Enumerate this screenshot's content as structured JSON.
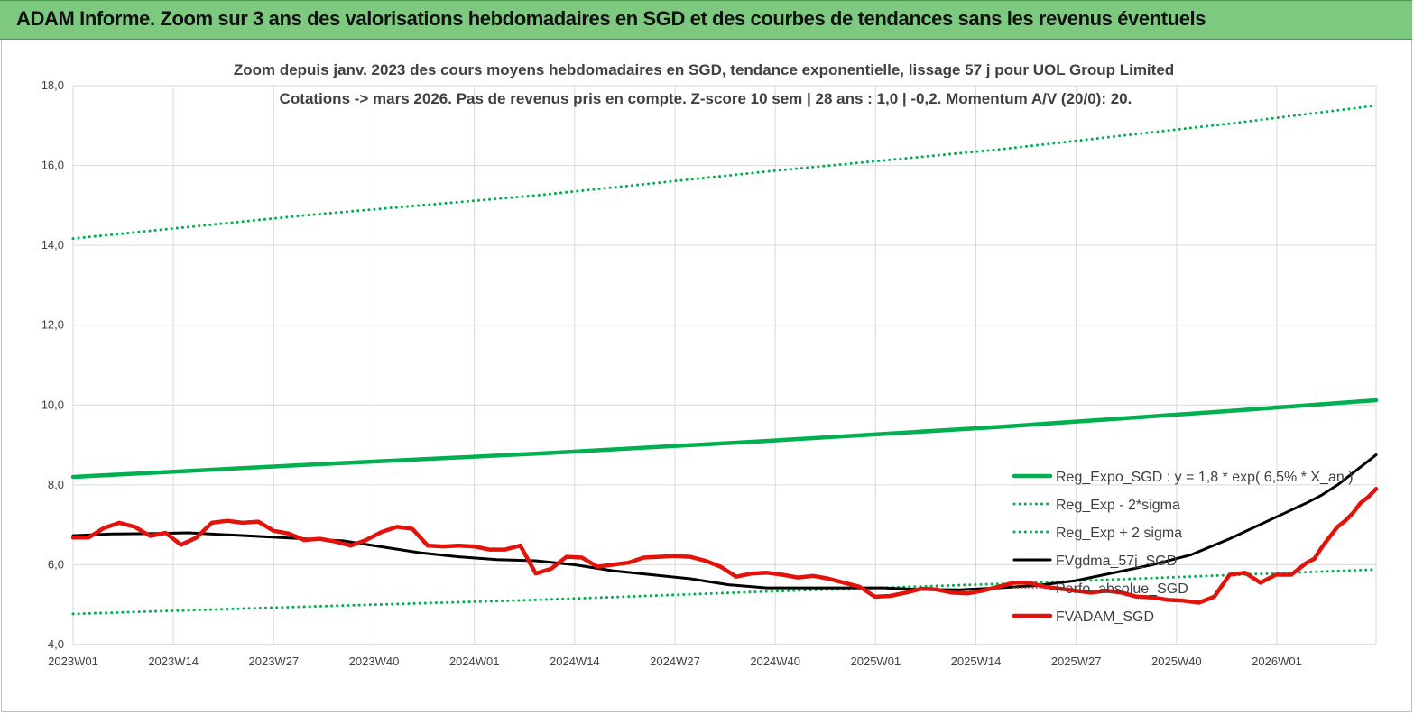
{
  "header": {
    "banner_title": "ADAM Informe. Zoom sur 3 ans des valorisations hebdomadaires en SGD et des courbes de tendances sans les revenus éventuels"
  },
  "colors": {
    "banner_bg": "#7dc97f",
    "trend": "#00b050",
    "price": "#e3120b",
    "smooth": "#000000",
    "perf": "#c0504d",
    "grid": "#d9d9d9"
  },
  "chart_data": {
    "type": "line",
    "title": "Zoom depuis janv. 2023 des cours moyens hebdomadaires en SGD, tendance exponentielle, lissage 57 j pour UOL Group Limited",
    "subtitle": "Cotations -> mars 2026. Pas de revenus pris en compte. Z-score 10 sem | 28 ans : 1,0 | -0,2. Momentum A/V (20/0): 20.",
    "xlabel": "",
    "ylabel": "",
    "ylim": [
      4.0,
      18.0
    ],
    "ytick_labels": [
      "4,0",
      "6,0",
      "8,0",
      "10,0",
      "12,0",
      "14,0",
      "16,0",
      "18,0"
    ],
    "categories": [
      "2023W01",
      "2023W14",
      "2023W27",
      "2023W40",
      "2024W01",
      "2024W14",
      "2024W27",
      "2024W40",
      "2025W01",
      "2025W14",
      "2025W27",
      "2025W40",
      "2026W01"
    ],
    "x_week_range": [
      0,
      169
    ],
    "grid": true,
    "legend_position": "right",
    "series": [
      {
        "name": "Reg_Expo_SGD : y = 1,8 * exp( 6,5% * X_an )",
        "style": "solid-thick",
        "color": "#00b050",
        "x": [
          0,
          30,
          60,
          90,
          120,
          150,
          169
        ],
        "values": [
          8.2,
          8.5,
          8.78,
          9.1,
          9.45,
          9.85,
          10.12
        ]
      },
      {
        "name": "Reg_Exp - 2*sigma",
        "style": "dotted",
        "color": "#00b050",
        "x": [
          0,
          30,
          60,
          90,
          120,
          150,
          169
        ],
        "values": [
          4.77,
          4.95,
          5.12,
          5.33,
          5.52,
          5.74,
          5.88
        ]
      },
      {
        "name": "Reg_Exp + 2 sigma",
        "style": "dotted",
        "color": "#00b050",
        "x": [
          0,
          30,
          60,
          90,
          120,
          150,
          169
        ],
        "values": [
          14.17,
          14.75,
          15.25,
          15.85,
          16.4,
          17.05,
          17.5
        ]
      },
      {
        "name": "FVgdma_57j_SGD",
        "style": "solid",
        "color": "#000000",
        "x": [
          0,
          5,
          10,
          15,
          20,
          25,
          30,
          35,
          40,
          45,
          50,
          55,
          60,
          65,
          70,
          75,
          80,
          85,
          90,
          95,
          100,
          105,
          110,
          115,
          120,
          125,
          130,
          135,
          140,
          145,
          150,
          155,
          160,
          162,
          164,
          166,
          168,
          169
        ],
        "values": [
          6.73,
          6.77,
          6.78,
          6.8,
          6.75,
          6.7,
          6.65,
          6.6,
          6.45,
          6.3,
          6.2,
          6.13,
          6.1,
          6.0,
          5.85,
          5.75,
          5.65,
          5.5,
          5.42,
          5.42,
          5.42,
          5.42,
          5.38,
          5.37,
          5.42,
          5.48,
          5.6,
          5.8,
          6.0,
          6.25,
          6.65,
          7.1,
          7.55,
          7.75,
          8.0,
          8.3,
          8.6,
          8.75
        ]
      },
      {
        "name": "Perfo. absolue_SGD",
        "style": "dotted-thin",
        "color": "#c0504d",
        "x": [],
        "values": []
      },
      {
        "name": "FVADAM_SGD",
        "style": "solid-thick",
        "color": "#e3120b",
        "x": [
          0,
          2,
          4,
          6,
          8,
          10,
          12,
          14,
          16,
          18,
          20,
          22,
          24,
          26,
          28,
          30,
          32,
          34,
          36,
          38,
          40,
          42,
          44,
          46,
          48,
          50,
          52,
          54,
          56,
          58,
          60,
          62,
          64,
          66,
          68,
          70,
          72,
          74,
          76,
          78,
          80,
          82,
          84,
          86,
          88,
          90,
          92,
          94,
          96,
          98,
          100,
          102,
          104,
          106,
          108,
          110,
          112,
          114,
          116,
          118,
          120,
          122,
          124,
          126,
          128,
          130,
          132,
          134,
          136,
          138,
          140,
          142,
          144,
          146,
          148,
          150,
          152,
          154,
          156,
          158,
          160,
          161,
          162,
          163,
          164,
          165,
          166,
          167,
          168,
          169
        ],
        "values": [
          6.68,
          6.68,
          6.92,
          7.05,
          6.95,
          6.72,
          6.8,
          6.5,
          6.68,
          7.05,
          7.1,
          7.05,
          7.08,
          6.85,
          6.78,
          6.62,
          6.65,
          6.58,
          6.48,
          6.62,
          6.82,
          6.95,
          6.9,
          6.48,
          6.46,
          6.48,
          6.46,
          6.38,
          6.38,
          6.48,
          5.78,
          5.9,
          6.2,
          6.18,
          5.95,
          6.0,
          6.05,
          6.18,
          6.2,
          6.22,
          6.2,
          6.1,
          5.95,
          5.7,
          5.78,
          5.8,
          5.75,
          5.68,
          5.72,
          5.65,
          5.55,
          5.45,
          5.2,
          5.22,
          5.3,
          5.4,
          5.38,
          5.3,
          5.28,
          5.35,
          5.45,
          5.55,
          5.55,
          5.45,
          5.4,
          5.35,
          5.3,
          5.35,
          5.3,
          5.2,
          5.18,
          5.12,
          5.1,
          5.05,
          5.2,
          5.75,
          5.8,
          5.55,
          5.75,
          5.75,
          6.05,
          6.15,
          6.45,
          6.7,
          6.95,
          7.1,
          7.3,
          7.55,
          7.7,
          7.9
        ]
      }
    ]
  }
}
